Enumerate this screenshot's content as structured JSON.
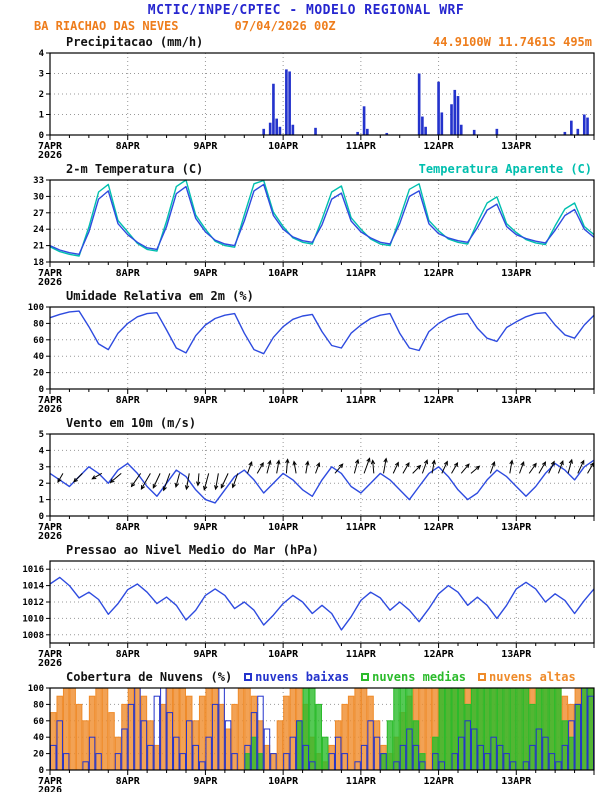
{
  "header": {
    "title": "MCTIC/INPE/CPTEC - MODELO REGIONAL WRF",
    "station": "BA RIACHAO DAS NEVES",
    "run": "07/04/2026 00Z",
    "location": "44.9100W 11.7461S 495m"
  },
  "colors": {
    "title_blue": "#2626cf",
    "orange": "#ee7d1c",
    "cyan": "#00bfae",
    "line_blue": "#2e4bdf",
    "precip_blue": "#2433cc",
    "cloud_low": "#2433cc",
    "cloud_mid": "#2bbb2b",
    "cloud_high": "#ef8b2a",
    "black": "#000000"
  },
  "x_axis": {
    "day_labels": [
      "7APR",
      "8APR",
      "9APR",
      "10APR",
      "11APR",
      "12APR",
      "13APR"
    ],
    "year": "2026",
    "total_hours": 168,
    "day_step": 24,
    "minor_step": 6
  },
  "chart_data": [
    {
      "type": "bar",
      "title": "Precipitacao (mm/h)",
      "note": "44.9100W 11.7461S 495m",
      "ylim": [
        0,
        4
      ],
      "yticks": [
        0,
        1,
        2,
        3,
        4
      ],
      "series": [
        {
          "name": "precipitacao",
          "kind": "bars",
          "color": "precip_blue",
          "points": [
            [
              66,
              0.3
            ],
            [
              68,
              0.6
            ],
            [
              69,
              2.5
            ],
            [
              70,
              0.8
            ],
            [
              71,
              0.4
            ],
            [
              73,
              3.2
            ],
            [
              74,
              3.1
            ],
            [
              75,
              0.5
            ],
            [
              82,
              0.35
            ],
            [
              95,
              0.15
            ],
            [
              97,
              1.4
            ],
            [
              98,
              0.3
            ],
            [
              104,
              0.1
            ],
            [
              114,
              3.0
            ],
            [
              115,
              0.9
            ],
            [
              116,
              0.4
            ],
            [
              120,
              2.6
            ],
            [
              121,
              1.1
            ],
            [
              124,
              1.5
            ],
            [
              125,
              2.2
            ],
            [
              126,
              1.9
            ],
            [
              127,
              0.5
            ],
            [
              131,
              0.25
            ],
            [
              138,
              0.3
            ],
            [
              159,
              0.15
            ],
            [
              161,
              0.7
            ],
            [
              163,
              0.3
            ],
            [
              165,
              1.0
            ],
            [
              166,
              0.85
            ]
          ]
        }
      ]
    },
    {
      "type": "line",
      "title": "2-m Temperatura (C)",
      "note": "Temperatura Aparente (C)",
      "ylim": [
        18,
        33
      ],
      "yticks": [
        18,
        21,
        24,
        27,
        30,
        33
      ],
      "series": [
        {
          "name": "temperatura-aparente",
          "kind": "line",
          "color": "cyan",
          "step_hours": 3,
          "values": [
            20.8,
            19.9,
            19.4,
            19.1,
            24.4,
            30.8,
            32.2,
            25.6,
            23.5,
            21.4,
            20.3,
            20.0,
            25.5,
            31.8,
            33.0,
            26.6,
            24.0,
            21.8,
            21.0,
            20.7,
            26.6,
            32.3,
            32.9,
            27.1,
            24.5,
            22.4,
            21.6,
            21.3,
            25.8,
            30.8,
            31.9,
            26.1,
            24.0,
            22.2,
            21.3,
            21.0,
            26.0,
            31.3,
            32.3,
            25.6,
            23.7,
            22.2,
            21.6,
            21.3,
            25.2,
            28.8,
            29.9,
            25.0,
            23.4,
            22.1,
            21.5,
            21.2,
            24.6,
            27.7,
            28.8,
            24.5,
            23.0
          ]
        },
        {
          "name": "temperatura",
          "kind": "line",
          "color": "line_blue",
          "step_hours": 3,
          "values": [
            21.0,
            20.2,
            19.7,
            19.4,
            23.5,
            29.5,
            31.0,
            25.0,
            23.0,
            21.6,
            20.6,
            20.3,
            24.5,
            30.5,
            31.8,
            26.0,
            23.5,
            22.0,
            21.3,
            21.0,
            25.5,
            31.0,
            32.2,
            26.5,
            24.0,
            22.6,
            21.9,
            21.6,
            24.8,
            29.5,
            30.6,
            25.5,
            23.5,
            22.4,
            21.6,
            21.3,
            25.0,
            30.0,
            31.0,
            25.0,
            23.2,
            22.4,
            21.9,
            21.6,
            24.3,
            27.5,
            28.6,
            24.5,
            23.0,
            22.3,
            21.8,
            21.5,
            23.8,
            26.5,
            27.6,
            24.0,
            22.5
          ]
        }
      ]
    },
    {
      "type": "line",
      "title": "Umidade Relativa em 2m (%)",
      "note": "",
      "ylim": [
        0,
        100
      ],
      "yticks": [
        0,
        20,
        40,
        60,
        80,
        100
      ],
      "series": [
        {
          "name": "umidade-relativa",
          "kind": "line",
          "color": "line_blue",
          "step_hours": 3,
          "values": [
            87,
            91,
            94,
            95,
            76,
            55,
            48,
            68,
            80,
            88,
            92,
            93,
            72,
            50,
            44,
            65,
            78,
            86,
            90,
            92,
            68,
            48,
            43,
            63,
            76,
            85,
            89,
            91,
            70,
            53,
            50,
            68,
            78,
            86,
            90,
            92,
            68,
            50,
            47,
            70,
            80,
            87,
            91,
            92,
            74,
            62,
            58,
            75,
            82,
            88,
            92,
            93,
            78,
            66,
            62,
            78,
            90
          ]
        }
      ]
    },
    {
      "type": "line",
      "title": "Vento em 10m (m/s)",
      "note": "",
      "ylim": [
        0,
        5
      ],
      "yticks": [
        0,
        1,
        2,
        3,
        4,
        5
      ],
      "series": [
        {
          "name": "vento-velocidade",
          "kind": "line",
          "color": "line_blue",
          "step_hours": 3,
          "values": [
            2.6,
            2.2,
            1.8,
            2.4,
            3.0,
            2.6,
            2.0,
            2.8,
            3.2,
            2.6,
            1.8,
            1.2,
            2.0,
            2.8,
            2.4,
            1.6,
            1.0,
            0.8,
            1.6,
            2.4,
            2.8,
            2.2,
            1.4,
            2.0,
            2.6,
            2.2,
            1.6,
            1.2,
            2.2,
            3.0,
            2.6,
            1.8,
            1.4,
            2.0,
            2.6,
            2.2,
            1.6,
            1.0,
            1.8,
            2.6,
            3.0,
            2.4,
            1.6,
            1.0,
            1.4,
            2.2,
            2.8,
            2.4,
            1.8,
            1.2,
            1.8,
            2.6,
            3.2,
            2.8,
            2.2,
            3.0,
            3.4
          ]
        },
        {
          "name": "vento-direcao",
          "kind": "arrows",
          "anchor": 2.6,
          "points": [
            [
              4,
              210,
              10
            ],
            [
              10,
              225,
              12
            ],
            [
              16,
              240,
              11
            ],
            [
              22,
              230,
              14
            ],
            [
              28,
              215,
              16
            ],
            [
              31,
              210,
              18
            ],
            [
              34,
              205,
              16
            ],
            [
              37,
              200,
              18
            ],
            [
              40,
              195,
              14
            ],
            [
              43,
              190,
              16
            ],
            [
              46,
              185,
              12
            ],
            [
              49,
              195,
              17
            ],
            [
              52,
              190,
              16
            ],
            [
              55,
              205,
              16
            ],
            [
              58,
              200,
              15
            ],
            [
              61,
              20,
              12
            ],
            [
              64,
              30,
              12
            ],
            [
              67,
              15,
              13
            ],
            [
              70,
              10,
              13
            ],
            [
              73,
              5,
              14
            ],
            [
              76,
              350,
              12
            ],
            [
              79,
              10,
              12
            ],
            [
              82,
              20,
              11
            ],
            [
              88,
              40,
              12
            ],
            [
              94,
              15,
              14
            ],
            [
              97,
              20,
              16
            ],
            [
              100,
              355,
              13
            ],
            [
              103,
              10,
              15
            ],
            [
              106,
              25,
              12
            ],
            [
              109,
              30,
              12
            ],
            [
              112,
              45,
              11
            ],
            [
              115,
              20,
              14
            ],
            [
              118,
              10,
              13
            ],
            [
              121,
              25,
              13
            ],
            [
              124,
              30,
              12
            ],
            [
              127,
              40,
              12
            ],
            [
              130,
              50,
              11
            ],
            [
              136,
              20,
              12
            ],
            [
              142,
              10,
              13
            ],
            [
              145,
              20,
              12
            ],
            [
              148,
              35,
              12
            ],
            [
              151,
              30,
              13
            ],
            [
              154,
              25,
              13
            ],
            [
              157,
              20,
              13
            ],
            [
              160,
              15,
              14
            ],
            [
              163,
              25,
              14
            ],
            [
              166,
              30,
              12
            ]
          ]
        }
      ]
    },
    {
      "type": "line",
      "title": "Pressao ao Nivel Medio do Mar (hPa)",
      "note": "",
      "ylim": [
        1007,
        1017
      ],
      "yticks": [
        1008,
        1010,
        1012,
        1014,
        1016
      ],
      "series": [
        {
          "name": "pressao",
          "kind": "line",
          "color": "line_blue",
          "step_hours": 3,
          "values": [
            1014.2,
            1015.0,
            1014.0,
            1012.5,
            1013.2,
            1012.3,
            1010.5,
            1011.8,
            1013.5,
            1014.2,
            1013.2,
            1011.8,
            1012.6,
            1011.6,
            1009.8,
            1011.0,
            1012.8,
            1013.6,
            1012.8,
            1011.2,
            1012.0,
            1011.0,
            1009.2,
            1010.4,
            1011.8,
            1012.8,
            1012.0,
            1010.6,
            1011.6,
            1010.6,
            1008.6,
            1010.2,
            1012.2,
            1013.2,
            1012.5,
            1011.0,
            1012.0,
            1011.0,
            1009.6,
            1011.2,
            1013.0,
            1014.0,
            1013.2,
            1011.6,
            1012.6,
            1011.6,
            1010.0,
            1011.6,
            1013.6,
            1014.4,
            1013.6,
            1012.0,
            1013.0,
            1012.2,
            1010.6,
            1012.2,
            1013.6
          ]
        }
      ]
    },
    {
      "type": "bar",
      "title": "Cobertura de Nuvens (%)",
      "ylim": [
        0,
        100
      ],
      "yticks": [
        0,
        20,
        40,
        60,
        80,
        100
      ],
      "legend": [
        {
          "label": "nuvens baixas",
          "color": "cloud_low"
        },
        {
          "label": "nuvens medias",
          "color": "cloud_mid"
        },
        {
          "label": "nuvens altas",
          "color": "cloud_high"
        }
      ],
      "series": [
        {
          "name": "nuvens-altas",
          "kind": "cloud",
          "color": "cloud_high",
          "step_hours": 2,
          "values": [
            70,
            90,
            100,
            100,
            80,
            60,
            90,
            100,
            100,
            70,
            40,
            80,
            100,
            100,
            90,
            60,
            30,
            80,
            100,
            100,
            100,
            90,
            60,
            90,
            100,
            100,
            80,
            50,
            80,
            100,
            100,
            90,
            60,
            30,
            20,
            60,
            90,
            100,
            100,
            80,
            40,
            20,
            10,
            30,
            60,
            80,
            90,
            100,
            100,
            90,
            60,
            30,
            20,
            40,
            70,
            90,
            100,
            100,
            100,
            100,
            100,
            100,
            100,
            100,
            100,
            100,
            100,
            100,
            100,
            100,
            100,
            100,
            100,
            100,
            100,
            100,
            100,
            100,
            100,
            90,
            80,
            100,
            100,
            100
          ]
        },
        {
          "name": "nuvens-medias",
          "kind": "cloud",
          "color": "cloud_mid",
          "step_hours": 2,
          "values": [
            0,
            0,
            0,
            0,
            0,
            0,
            0,
            0,
            0,
            0,
            0,
            0,
            0,
            0,
            0,
            0,
            0,
            0,
            0,
            0,
            0,
            0,
            0,
            0,
            0,
            0,
            0,
            0,
            0,
            0,
            20,
            40,
            20,
            0,
            0,
            0,
            0,
            0,
            60,
            100,
            100,
            80,
            40,
            0,
            0,
            0,
            0,
            0,
            0,
            0,
            0,
            20,
            60,
            100,
            100,
            100,
            60,
            20,
            0,
            40,
            100,
            100,
            100,
            100,
            80,
            100,
            100,
            100,
            100,
            100,
            100,
            100,
            100,
            100,
            80,
            100,
            100,
            100,
            100,
            60,
            40,
            80,
            100,
            100
          ]
        },
        {
          "name": "nuvens-baixas",
          "kind": "cloud",
          "color": "cloud_low",
          "hollow": true,
          "step_hours": 2,
          "values": [
            30,
            60,
            20,
            0,
            0,
            10,
            40,
            20,
            0,
            0,
            20,
            50,
            80,
            100,
            60,
            30,
            90,
            100,
            70,
            40,
            20,
            60,
            30,
            10,
            40,
            80,
            100,
            60,
            20,
            0,
            30,
            70,
            90,
            50,
            20,
            0,
            20,
            40,
            60,
            30,
            10,
            0,
            0,
            20,
            40,
            20,
            0,
            10,
            30,
            60,
            40,
            20,
            0,
            10,
            30,
            50,
            30,
            10,
            0,
            20,
            10,
            0,
            20,
            40,
            60,
            50,
            30,
            20,
            40,
            30,
            20,
            10,
            0,
            10,
            30,
            50,
            40,
            20,
            10,
            30,
            60,
            80,
            100,
            90
          ]
        }
      ]
    }
  ]
}
